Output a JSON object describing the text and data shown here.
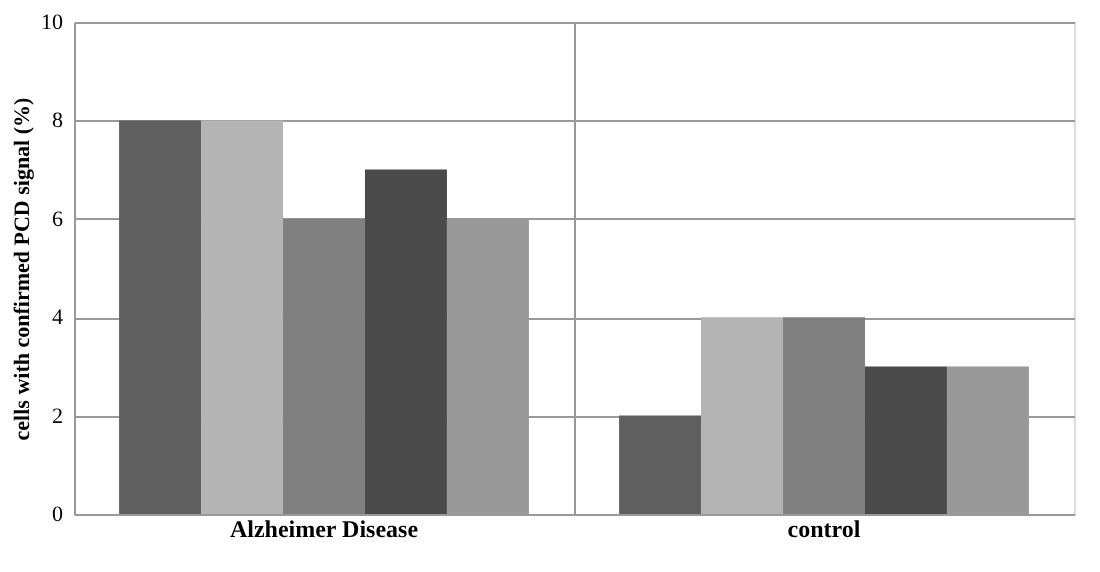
{
  "chart_data": {
    "type": "bar",
    "ylabel": "cells with confirmed  PCD signal (%)",
    "categories": [
      "Alzheimer Disease",
      "control"
    ],
    "series": [
      {
        "color": "#5f5f5f",
        "values": [
          8,
          2
        ]
      },
      {
        "color": "#b4b4b4",
        "values": [
          8,
          4
        ]
      },
      {
        "color": "#808080",
        "values": [
          6,
          4
        ]
      },
      {
        "color": "#4a4a4a",
        "values": [
          7,
          3
        ]
      },
      {
        "color": "#999999",
        "values": [
          6,
          3
        ]
      }
    ],
    "ylim": [
      0,
      10
    ],
    "yticks": [
      0,
      2,
      4,
      6,
      8,
      10
    ],
    "grid": true,
    "legend": false
  }
}
